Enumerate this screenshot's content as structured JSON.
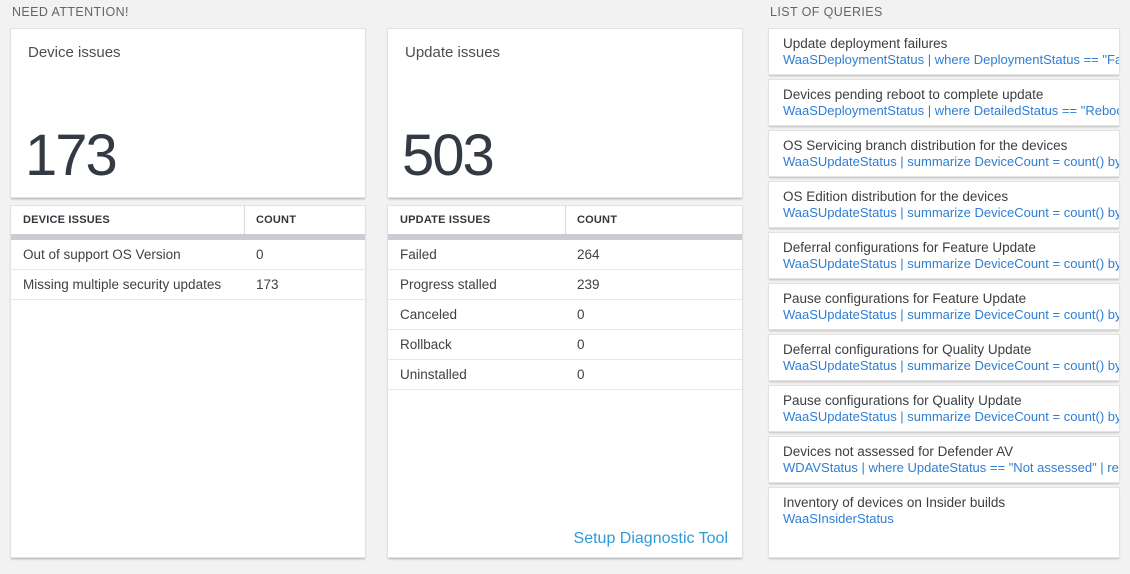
{
  "sections": {
    "need_attention_label": "NEED ATTENTION!",
    "queries_label": "LIST OF QUERIES"
  },
  "colors": {
    "page_bg": "#f2f2f2",
    "query_link_blue": "#2f7ed3",
    "footer_link_blue": "#2e9ad8",
    "big_number_color": "#333a44",
    "scroll_strip": "#c9cdd2"
  },
  "cards": [
    {
      "title": "Device issues",
      "big_number": "173",
      "table": {
        "headers": [
          "DEVICE ISSUES",
          "COUNT"
        ],
        "rows": [
          {
            "label": "Out of support OS Version",
            "count": "0"
          },
          {
            "label": "Missing multiple security updates",
            "count": "173"
          }
        ]
      }
    },
    {
      "title": "Update issues",
      "big_number": "503",
      "table": {
        "headers": [
          "UPDATE ISSUES",
          "COUNT"
        ],
        "rows": [
          {
            "label": "Failed",
            "count": "264"
          },
          {
            "label": "Progress stalled",
            "count": "239"
          },
          {
            "label": "Canceled",
            "count": "0"
          },
          {
            "label": "Rollback",
            "count": "0"
          },
          {
            "label": "Uninstalled",
            "count": "0"
          }
        ]
      },
      "footer_link": "Setup Diagnostic Tool"
    }
  ],
  "queries": {
    "items": [
      {
        "title": "Update deployment failures",
        "query": "WaaSDeploymentStatus | where DeploymentStatus == \"Failed\" |..."
      },
      {
        "title": "Devices pending reboot to complete update",
        "query": "WaaSDeploymentStatus | where DetailedStatus == \"Reboot pend..."
      },
      {
        "title": "OS Servicing branch distribution for the devices",
        "query": "WaaSUpdateStatus | summarize DeviceCount = count() by OSSer..."
      },
      {
        "title": "OS Edition distribution for the devices",
        "query": "WaaSUpdateStatus | summarize DeviceCount = count() by OSEdit..."
      },
      {
        "title": "Deferral configurations for Feature Update",
        "query": "WaaSUpdateStatus | summarize DeviceCount = count() by Featur..."
      },
      {
        "title": "Pause configurations for Feature Update",
        "query": "WaaSUpdateStatus | summarize DeviceCount = count() by Featur..."
      },
      {
        "title": "Deferral configurations for Quality Update",
        "query": "WaaSUpdateStatus | summarize DeviceCount = count() by Qualit..."
      },
      {
        "title": "Pause configurations for Quality Update",
        "query": "WaaSUpdateStatus | summarize DeviceCount = count() by Qualit..."
      },
      {
        "title": "Devices not assessed for Defender AV",
        "query": "WDAVStatus | where UpdateStatus == \"Not assessed\" | render ta..."
      },
      {
        "title": "Inventory of devices on Insider builds",
        "query": "WaaSInsiderStatus"
      }
    ]
  }
}
